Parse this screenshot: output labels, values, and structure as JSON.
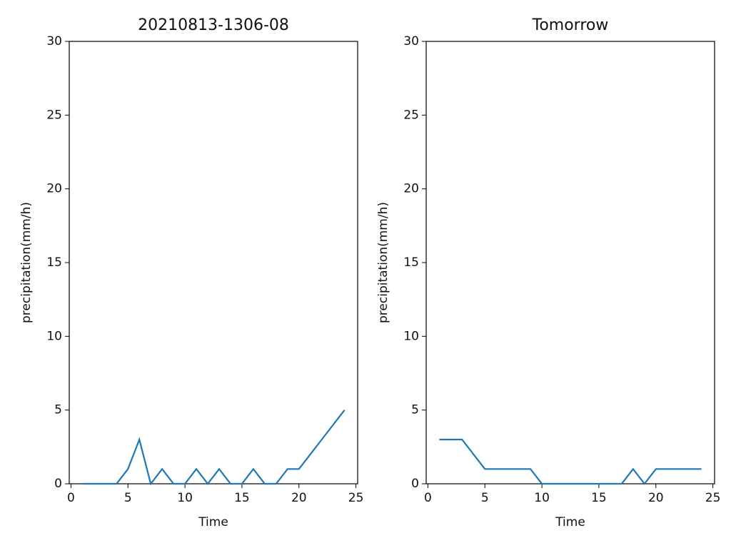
{
  "chart_data": [
    {
      "type": "line",
      "title": "20210813-1306-08",
      "xlabel": "Time",
      "ylabel": "precipitation(mm/h)",
      "x": [
        1,
        2,
        3,
        4,
        5,
        6,
        7,
        8,
        9,
        10,
        11,
        12,
        13,
        14,
        15,
        16,
        17,
        18,
        19,
        20,
        21,
        22,
        23,
        24
      ],
      "series": [
        {
          "color": "#1f77b4",
          "values": [
            0,
            0,
            0,
            0,
            1,
            3,
            0,
            1,
            0,
            0,
            1,
            0,
            1,
            0,
            0,
            1,
            0,
            0,
            1,
            1,
            2,
            3,
            4,
            5
          ]
        }
      ],
      "xlim": [
        -0.15,
        25.15
      ],
      "xticks": [
        0,
        5,
        10,
        15,
        20,
        25
      ],
      "ylim": [
        0,
        30
      ],
      "yticks": [
        0,
        5,
        10,
        15,
        20,
        25,
        30
      ]
    },
    {
      "type": "line",
      "title": "Tomorrow",
      "xlabel": "Time",
      "ylabel": "precipitation(mm/h)",
      "x": [
        1,
        2,
        3,
        4,
        5,
        6,
        7,
        8,
        9,
        10,
        11,
        12,
        13,
        14,
        15,
        16,
        17,
        18,
        19,
        20,
        21,
        22,
        23,
        24
      ],
      "series": [
        {
          "color": "#1f77b4",
          "values": [
            3,
            3,
            3,
            2,
            1,
            1,
            1,
            1,
            1,
            0,
            0,
            0,
            0,
            0,
            0,
            0,
            0,
            1,
            0,
            1,
            1,
            1,
            1,
            1
          ]
        }
      ],
      "xlim": [
        -0.15,
        25.15
      ],
      "xticks": [
        0,
        5,
        10,
        15,
        20,
        25
      ],
      "ylim": [
        0,
        30
      ],
      "yticks": [
        0,
        5,
        10,
        15,
        20,
        25,
        30
      ]
    }
  ]
}
